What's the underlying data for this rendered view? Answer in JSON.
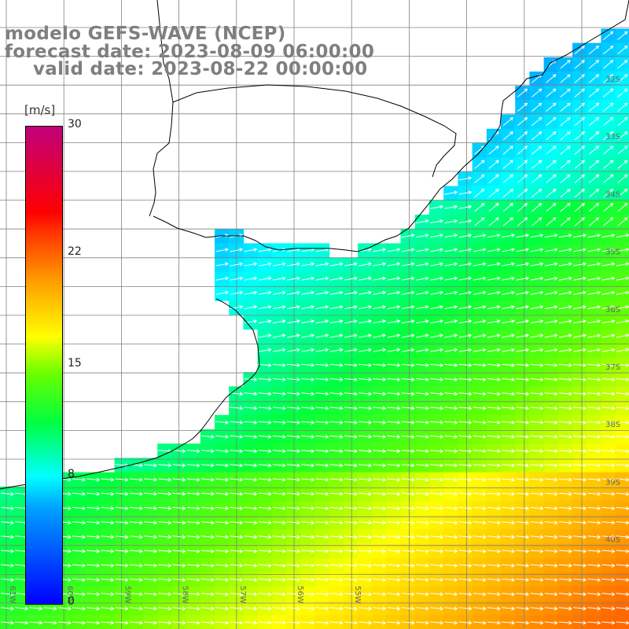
{
  "header": {
    "line1": "modelo GEFS-WAVE (NCEP)",
    "line2": "forecast date: 2023-08-09 06:00:00",
    "line3": "valid date: 2023-08-22 00:00:00"
  },
  "colorbar": {
    "units": "[m/s]",
    "min": 0,
    "max": 30,
    "ticks": [
      {
        "value": 30,
        "label": "30"
      },
      {
        "value": 22,
        "label": "22"
      },
      {
        "value": 15,
        "label": "15"
      },
      {
        "value": 8,
        "label": "8"
      },
      {
        "value": 0,
        "label": "0"
      }
    ],
    "colors": [
      "#0000ff",
      "#00a0ff",
      "#00ffff",
      "#00ff40",
      "#66ff00",
      "#ffff00",
      "#ff9900",
      "#ff0000",
      "#c0007a"
    ]
  },
  "map": {
    "lat_labels": [
      "32S",
      "33S",
      "34S",
      "35S",
      "36S",
      "37S",
      "38S",
      "39S",
      "40S"
    ],
    "lon_labels": [
      "61W",
      "60W",
      "59W",
      "58W",
      "57W",
      "56W",
      "55W"
    ],
    "land_color": "#ffffff",
    "coastline_color": "#000000",
    "grid_color": "#808080",
    "arrow_color": "#ffffff"
  }
}
